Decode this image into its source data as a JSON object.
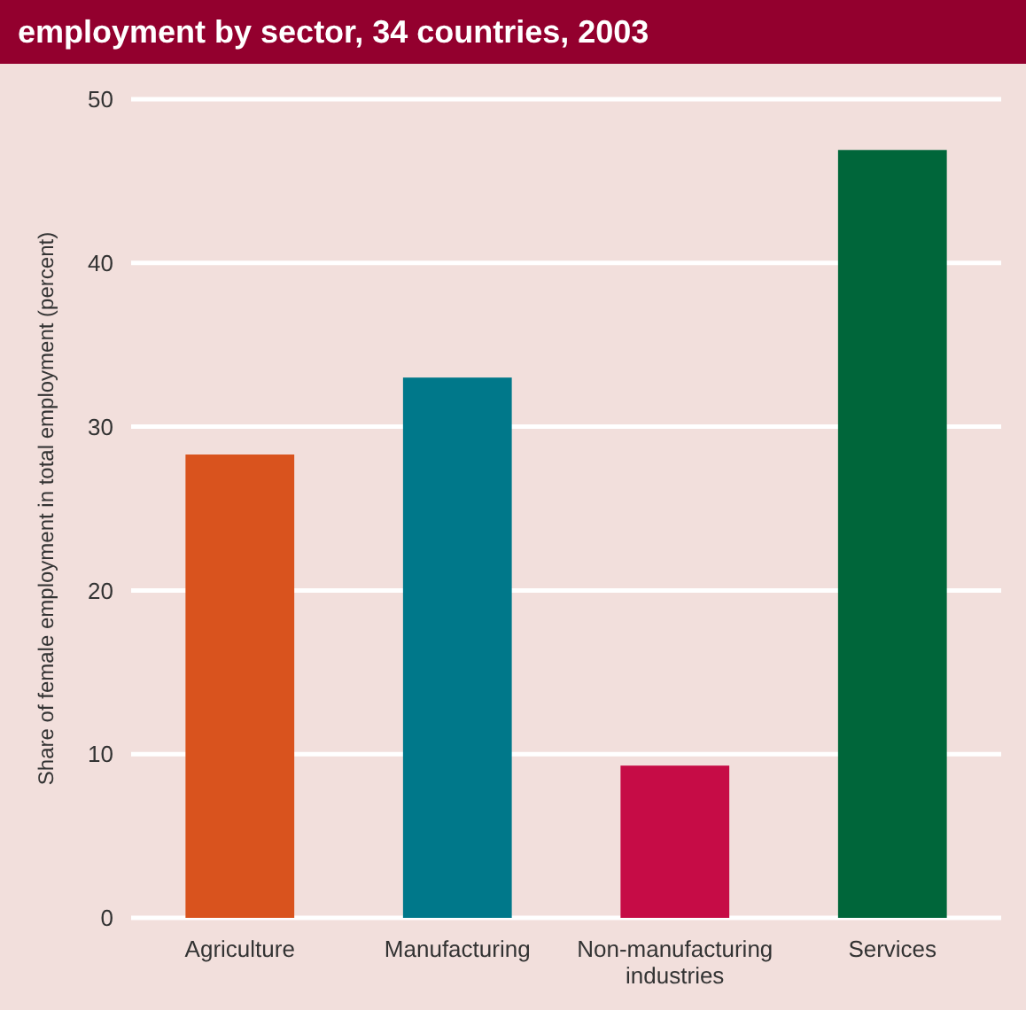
{
  "chart_data": {
    "type": "bar",
    "title": "employment by sector, 34 countries, 2003",
    "ylabel": "Share of female employment in total employment (percent)",
    "categories": [
      "Agriculture",
      "Manufacturing",
      "Non-manufacturing industries",
      "Services"
    ],
    "values": [
      28.3,
      33.0,
      9.3,
      46.9
    ],
    "colors": [
      "#d9531e",
      "#00788a",
      "#c60c46",
      "#00663a"
    ],
    "ylim": [
      0,
      50
    ],
    "yticks": [
      0,
      10,
      20,
      30,
      40,
      50
    ],
    "grid": "y"
  }
}
